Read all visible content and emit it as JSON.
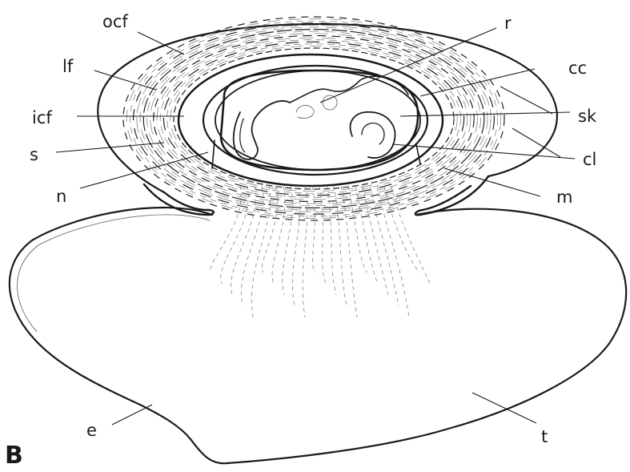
{
  "panel_label": "B",
  "labels": {
    "ocf": "ocf",
    "lf": "lf",
    "icf": "icf",
    "s": "s",
    "n": "n",
    "r": "r",
    "cc": "cc",
    "sk": "sk",
    "cl": "cl",
    "m": "m",
    "e": "e",
    "t": "t"
  }
}
